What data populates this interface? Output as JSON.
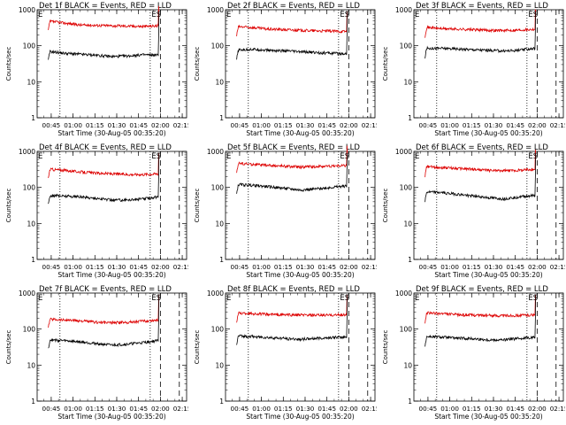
{
  "colors": {
    "events": "#000000",
    "lld": "#dd0000",
    "axes": "#000000",
    "background": "#ffffff"
  },
  "chart_data": {
    "type": "line",
    "shared": {
      "y_scale": "log",
      "ylim": [
        1,
        1000
      ],
      "ytick_labels": [
        "1",
        "10",
        "100",
        "1000"
      ],
      "xlim": [
        "00:35:20",
        "02:18:00"
      ],
      "xtick_labels": [
        "00:45",
        "01:00",
        "01:15",
        "01:30",
        "01:45",
        "02:00",
        "02:15"
      ],
      "xlabel": "Start Time (30-Aug-05 00:35:20)",
      "ylabel": "Counts/sec",
      "left_marker": "E",
      "right_marker": "ES",
      "dotted_lines_at": [
        "00:51",
        "01:53"
      ],
      "dashed_lines_at": [
        "02:00",
        "02:13"
      ]
    },
    "panels": [
      {
        "title": "Det 1f BLACK = Events, RED = LLD",
        "events_level": 55,
        "lld_level": 380,
        "events_profile": [
          70,
          62,
          58,
          55,
          50,
          52,
          56,
          55
        ],
        "lld_profile": [
          480,
          430,
          380,
          370,
          360,
          355,
          345,
          360
        ]
      },
      {
        "title": "Det 2f BLACK = Events, RED = LLD",
        "events_level": 65,
        "lld_level": 280,
        "events_profile": [
          75,
          80,
          75,
          72,
          68,
          65,
          62,
          60
        ],
        "lld_profile": [
          340,
          320,
          290,
          280,
          270,
          260,
          255,
          250
        ]
      },
      {
        "title": "Det 3f BLACK = Events, RED = LLD",
        "events_level": 75,
        "lld_level": 280,
        "events_profile": [
          85,
          85,
          82,
          78,
          75,
          72,
          75,
          85
        ],
        "lld_profile": [
          330,
          300,
          290,
          280,
          270,
          265,
          275,
          290
        ]
      },
      {
        "title": "Det 4f BLACK = Events, RED = LLD",
        "events_level": 50,
        "lld_level": 250,
        "events_profile": [
          60,
          58,
          55,
          50,
          45,
          45,
          48,
          55
        ],
        "lld_profile": [
          320,
          300,
          270,
          250,
          240,
          230,
          230,
          240
        ]
      },
      {
        "title": "Det 5f BLACK = Events, RED = LLD",
        "events_level": 100,
        "lld_level": 400,
        "events_profile": [
          120,
          115,
          105,
          95,
          85,
          90,
          100,
          110
        ],
        "lld_profile": [
          470,
          440,
          410,
          390,
          370,
          380,
          390,
          410
        ]
      },
      {
        "title": "Det 6f BLACK = Events, RED = LLD",
        "events_level": 55,
        "lld_level": 320,
        "events_profile": [
          75,
          72,
          65,
          58,
          52,
          48,
          55,
          60
        ],
        "lld_profile": [
          380,
          360,
          340,
          320,
          300,
          290,
          300,
          320
        ]
      },
      {
        "title": "Det 7f BLACK = Events, RED = LLD",
        "events_level": 40,
        "lld_level": 160,
        "events_profile": [
          50,
          48,
          44,
          40,
          36,
          38,
          42,
          48
        ],
        "lld_profile": [
          190,
          180,
          170,
          155,
          150,
          155,
          165,
          180
        ]
      },
      {
        "title": "Det 8f BLACK = Events, RED = LLD",
        "events_level": 55,
        "lld_level": 250,
        "events_profile": [
          65,
          62,
          58,
          55,
          52,
          55,
          58,
          60
        ],
        "lld_profile": [
          280,
          270,
          255,
          250,
          245,
          240,
          245,
          250
        ]
      },
      {
        "title": "Det 9f BLACK = Events, RED = LLD",
        "events_level": 55,
        "lld_level": 250,
        "events_profile": [
          62,
          60,
          56,
          54,
          50,
          50,
          55,
          60
        ],
        "lld_profile": [
          280,
          270,
          250,
          245,
          240,
          235,
          240,
          250
        ]
      }
    ]
  }
}
